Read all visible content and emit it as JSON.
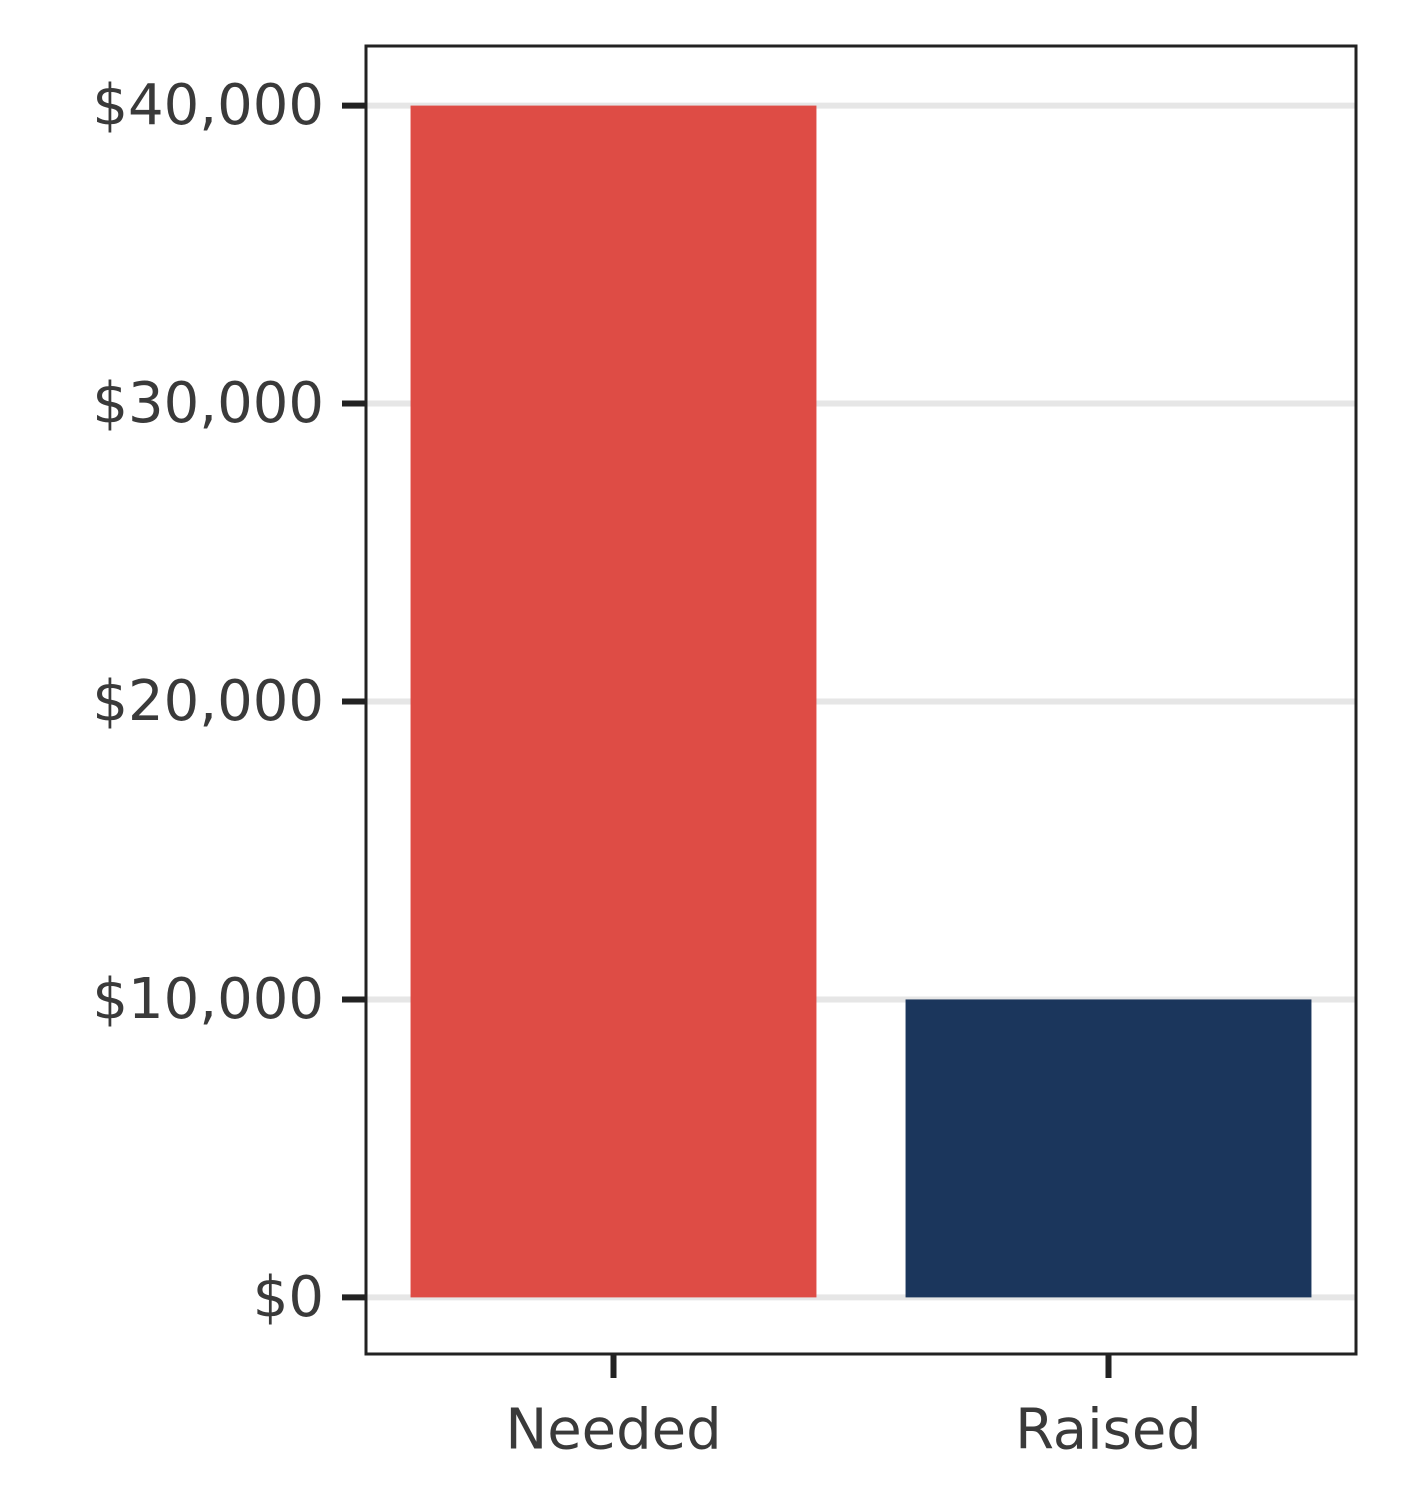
{
  "chart_data": {
    "type": "bar",
    "title": "",
    "xlabel": "",
    "ylabel": "",
    "categories": [
      "Needed",
      "Raised"
    ],
    "values": [
      40000,
      10000
    ],
    "colors": [
      "#de4c45",
      "#1b365c"
    ],
    "ylim": [
      -1900,
      42000
    ],
    "yticks": [
      0,
      10000,
      20000,
      30000,
      40000
    ],
    "ytick_labels": [
      "$0",
      "$10,000",
      "$20,000",
      "$30,000",
      "$40,000"
    ],
    "grid": "horizontal",
    "grid_color": "#e6e6e6",
    "frame_color": "#222222",
    "text_color": "#3a3a3a"
  }
}
